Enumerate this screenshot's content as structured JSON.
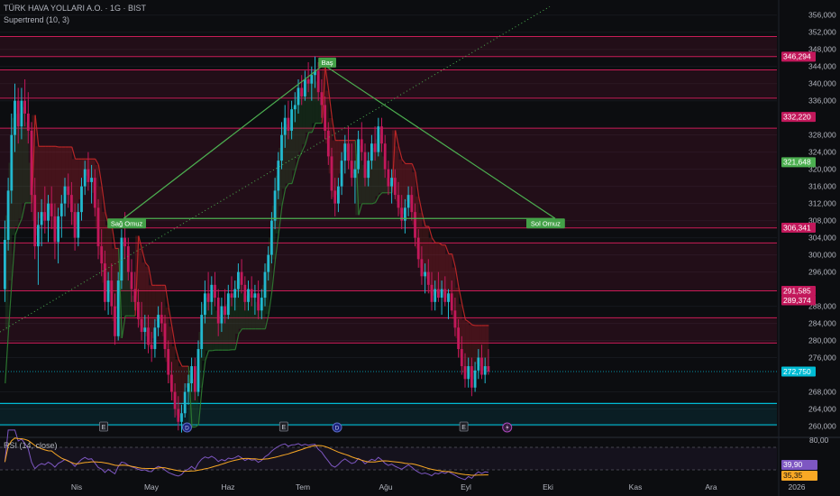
{
  "header": {
    "symbol_title": "TÜRK HAVA YOLLARI A.O. · 1G · BIST",
    "indicator_label": "Supertrend (10, 3)"
  },
  "rsi_panel": {
    "label": "RSI (14, close)",
    "value": "39,90",
    "ma_value": "35,35",
    "upper_tick": "80,00"
  },
  "colors": {
    "background": "#0c0d10",
    "candle_up": "#22b8cf",
    "candle_down": "#c2185b",
    "resistance_line": "#e91e63",
    "support_line": "#00bcd4",
    "trend_line": "#4caf50",
    "supertrend_up": "#2e7d32",
    "supertrend_down": "#c62828",
    "rsi_line": "#7e57c2",
    "rsi_ma": "#f9a825"
  },
  "chart_data": {
    "type": "candlestick",
    "symbol": "TÜRK HAVA YOLLARI A.O.",
    "interval": "1G",
    "exchange": "BIST",
    "x_tick_labels": [
      "Nis",
      "May",
      "Haz",
      "Tem",
      "Ağu",
      "Eyl",
      "Eki",
      "Kas",
      "Ara",
      "2026"
    ],
    "y_tick_labels": [
      "356,000",
      "352,000",
      "348,000",
      "344,000",
      "340,000",
      "336,000",
      "328,000",
      "324,000",
      "320,000",
      "316,000",
      "312,000",
      "308,000",
      "304,000",
      "300,000",
      "296,000",
      "288,000",
      "284,000",
      "280,000",
      "276,000",
      "268,000",
      "264,000",
      "260,000"
    ],
    "y_range": [
      258,
      357
    ],
    "price_badges": [
      {
        "label": "346,294",
        "value": 346.294,
        "color": "#c2185b"
      },
      {
        "label": "332,220",
        "value": 332.22,
        "color": "#c2185b"
      },
      {
        "label": "321,648",
        "value": 321.648,
        "color": "#4caf50"
      },
      {
        "label": "306,341",
        "value": 306.341,
        "color": "#c2185b"
      },
      {
        "label": "291,585",
        "value": 291.585,
        "color": "#c2185b"
      },
      {
        "label": "289,374",
        "value": 289.374,
        "color": "#c2185b"
      },
      {
        "label": "272,750",
        "value": 272.75,
        "color": "#00bcd4"
      }
    ],
    "resistance_levels": [
      351,
      346.3,
      343.2,
      336.6,
      329.6,
      306.3,
      302.8,
      291.6,
      285.3,
      279.4
    ],
    "support_zone": [
      260.3,
      265.3
    ],
    "current_price": 272.75,
    "pattern_labels": [
      {
        "text": "Sağ Omuz",
        "index": 36,
        "price": 308.5
      },
      {
        "text": "Baş",
        "index": 96,
        "price": 344.4
      },
      {
        "text": "Sol Omuz",
        "index": 160,
        "price": 308.5
      }
    ],
    "event_markers": [
      {
        "type": "E",
        "index": 30
      },
      {
        "type": "D",
        "index": 55
      },
      {
        "type": "E",
        "index": 84
      },
      {
        "type": "D",
        "index": 100
      },
      {
        "type": "E",
        "index": 138
      },
      {
        "type": "S",
        "index": 151
      }
    ],
    "candles": [
      [
        292.0,
        308.0,
        289.0,
        303.5
      ],
      [
        303.5,
        318.0,
        301.0,
        315.0
      ],
      [
        315.0,
        333.0,
        312.0,
        328.0
      ],
      [
        328.0,
        340.0,
        324.0,
        336.0
      ],
      [
        336.0,
        339.0,
        326.0,
        330.0
      ],
      [
        330.0,
        339.0,
        327.0,
        336.0
      ],
      [
        336.0,
        341.0,
        330.0,
        333.0
      ],
      [
        333.0,
        338.0,
        326.0,
        329.0
      ],
      [
        329.0,
        331.0,
        310.0,
        314.0
      ],
      [
        314.0,
        318.0,
        299.0,
        302.0
      ],
      [
        302.0,
        310.0,
        293.0,
        307.0
      ],
      [
        307.0,
        313.0,
        302.0,
        310.0
      ],
      [
        310.0,
        316.0,
        305.0,
        308.0
      ],
      [
        308.0,
        314.0,
        303.0,
        312.0
      ],
      [
        312.0,
        316.0,
        306.0,
        309.0
      ],
      [
        309.0,
        312.0,
        299.0,
        303.0
      ],
      [
        303.0,
        311.0,
        298.0,
        309.0
      ],
      [
        309.0,
        314.0,
        304.0,
        312.0
      ],
      [
        312.0,
        318.0,
        309.0,
        316.0
      ],
      [
        316.0,
        319.0,
        311.0,
        314.0
      ],
      [
        314.0,
        317.0,
        307.0,
        310.0
      ],
      [
        310.0,
        312.0,
        301.0,
        304.0
      ],
      [
        304.0,
        312.0,
        302.0,
        310.0
      ],
      [
        310.0,
        318.0,
        308.0,
        316.0
      ],
      [
        316.0,
        322.0,
        314.0,
        320.0
      ],
      [
        320.0,
        324.0,
        315.0,
        317.0
      ],
      [
        317.0,
        321.0,
        312.0,
        318.0
      ],
      [
        318.0,
        320.0,
        309.0,
        311.0
      ],
      [
        311.0,
        313.0,
        299.0,
        302.0
      ],
      [
        302.0,
        306.0,
        295.0,
        298.0
      ],
      [
        298.0,
        301.0,
        287.0,
        289.0
      ],
      [
        289.0,
        296.0,
        286.0,
        294.0
      ],
      [
        294.0,
        298.0,
        286.0,
        288.0
      ],
      [
        288.0,
        291.0,
        279.0,
        281.0
      ],
      [
        281.0,
        296.0,
        280.0,
        294.0
      ],
      [
        294.0,
        306.0,
        292.0,
        304.0
      ],
      [
        304.0,
        310.0,
        299.0,
        302.0
      ],
      [
        302.0,
        304.0,
        294.0,
        296.0
      ],
      [
        296.0,
        299.0,
        289.0,
        292.0
      ],
      [
        292.0,
        296.0,
        287.0,
        289.0
      ],
      [
        289.0,
        292.0,
        283.0,
        285.0
      ],
      [
        285.0,
        289.0,
        280.0,
        282.0
      ],
      [
        282.0,
        286.0,
        278.0,
        283.0
      ],
      [
        283.0,
        286.0,
        277.0,
        279.0
      ],
      [
        279.0,
        282.0,
        275.0,
        278.0
      ],
      [
        278.0,
        285.0,
        276.0,
        283.0
      ],
      [
        283.0,
        288.0,
        281.0,
        286.0
      ],
      [
        286.0,
        289.0,
        282.0,
        284.0
      ],
      [
        284.0,
        286.0,
        276.0,
        278.0
      ],
      [
        278.0,
        280.0,
        270.0,
        272.0
      ],
      [
        272.0,
        275.0,
        266.0,
        268.0
      ],
      [
        268.0,
        270.0,
        262.0,
        264.0
      ],
      [
        264.0,
        267.0,
        259.0,
        261.0
      ],
      [
        261.0,
        265.0,
        258.5,
        263.0
      ],
      [
        263.0,
        270.0,
        262.0,
        268.0
      ],
      [
        268.0,
        272.0,
        265.0,
        270.0
      ],
      [
        270.0,
        276.0,
        268.0,
        274.0
      ],
      [
        274.0,
        276.0,
        266.0,
        268.0
      ],
      [
        268.0,
        280.0,
        267.0,
        278.0
      ],
      [
        278.0,
        289.0,
        276.0,
        286.0
      ],
      [
        286.0,
        294.0,
        284.0,
        291.0
      ],
      [
        291.0,
        296.0,
        287.0,
        289.0
      ],
      [
        289.0,
        295.0,
        286.0,
        293.0
      ],
      [
        293.0,
        296.0,
        288.0,
        290.0
      ],
      [
        290.0,
        292.0,
        281.0,
        284.0
      ],
      [
        284.0,
        290.0,
        282.0,
        288.0
      ],
      [
        288.0,
        292.0,
        284.0,
        286.0
      ],
      [
        286.0,
        293.0,
        285.0,
        291.0
      ],
      [
        291.0,
        295.0,
        288.0,
        290.0
      ],
      [
        290.0,
        294.0,
        287.0,
        292.0
      ],
      [
        292.0,
        298.0,
        290.0,
        296.0
      ],
      [
        296.0,
        299.0,
        291.0,
        293.0
      ],
      [
        293.0,
        295.0,
        287.0,
        289.0
      ],
      [
        289.0,
        294.0,
        287.0,
        292.0
      ],
      [
        292.0,
        295.0,
        288.0,
        290.0
      ],
      [
        290.0,
        293.0,
        286.0,
        291.0
      ],
      [
        291.0,
        294.0,
        285.0,
        287.0
      ],
      [
        287.0,
        292.0,
        285.0,
        290.0
      ],
      [
        290.0,
        298.0,
        288.0,
        296.0
      ],
      [
        296.0,
        302.0,
        294.0,
        300.0
      ],
      [
        300.0,
        310.0,
        298.0,
        308.0
      ],
      [
        308.0,
        318.0,
        306.0,
        315.0
      ],
      [
        315.0,
        324.0,
        313.0,
        322.0
      ],
      [
        322.0,
        331.0,
        320.0,
        328.0
      ],
      [
        328.0,
        335.0,
        325.0,
        332.0
      ],
      [
        332.0,
        336.0,
        327.0,
        329.0
      ],
      [
        329.0,
        336.0,
        327.0,
        334.0
      ],
      [
        334.0,
        338.0,
        331.0,
        335.0
      ],
      [
        335.0,
        341.0,
        333.0,
        339.0
      ],
      [
        339.0,
        342.0,
        335.0,
        337.0
      ],
      [
        337.0,
        343.0,
        336.0,
        341.0
      ],
      [
        341.0,
        345.0,
        338.0,
        340.0
      ],
      [
        340.0,
        344.0,
        336.0,
        342.0
      ],
      [
        342.0,
        346.3,
        339.0,
        343.0
      ],
      [
        343.0,
        345.0,
        336.0,
        338.0
      ],
      [
        338.0,
        341.0,
        332.0,
        335.0
      ],
      [
        335.0,
        337.0,
        327.0,
        329.0
      ],
      [
        329.0,
        331.0,
        321.0,
        323.0
      ],
      [
        323.0,
        325.0,
        313.0,
        315.0
      ],
      [
        315.0,
        318.0,
        309.0,
        312.0
      ],
      [
        312.0,
        318.0,
        310.0,
        316.0
      ],
      [
        316.0,
        324.0,
        314.0,
        322.0
      ],
      [
        322.0,
        328.0,
        319.0,
        326.0
      ],
      [
        326.0,
        330.0,
        320.0,
        322.0
      ],
      [
        322.0,
        326.0,
        316.0,
        318.0
      ],
      [
        318.0,
        322.0,
        312.0,
        320.0
      ],
      [
        320.0,
        329.0,
        319.0,
        327.0
      ],
      [
        327.0,
        331.0,
        322.0,
        324.0
      ],
      [
        324.0,
        326.0,
        316.0,
        318.0
      ],
      [
        318.0,
        324.0,
        316.0,
        322.0
      ],
      [
        322.0,
        328.0,
        320.0,
        326.0
      ],
      [
        326.0,
        330.0,
        322.0,
        324.0
      ],
      [
        324.0,
        332.0,
        323.0,
        330.0
      ],
      [
        330.0,
        332.0,
        324.0,
        326.0
      ],
      [
        326.0,
        328.0,
        318.0,
        320.0
      ],
      [
        320.0,
        322.0,
        314.0,
        316.0
      ],
      [
        316.0,
        320.0,
        312.0,
        318.0
      ],
      [
        318.0,
        320.0,
        313.0,
        314.0
      ],
      [
        314.0,
        317.0,
        309.0,
        311.0
      ],
      [
        311.0,
        314.0,
        306.0,
        308.0
      ],
      [
        308.0,
        313.0,
        305.0,
        311.0
      ],
      [
        311.0,
        316.0,
        309.0,
        314.0
      ],
      [
        314.0,
        316.0,
        308.0,
        310.0
      ],
      [
        310.0,
        312.0,
        302.0,
        304.0
      ],
      [
        304.0,
        306.0,
        297.0,
        299.0
      ],
      [
        299.0,
        302.0,
        293.0,
        295.0
      ],
      [
        295.0,
        298.0,
        291.0,
        296.0
      ],
      [
        296.0,
        299.0,
        291.0,
        293.0
      ],
      [
        293.0,
        296.0,
        287.0,
        289.0
      ],
      [
        289.0,
        294.0,
        287.0,
        292.0
      ],
      [
        292.0,
        296.0,
        289.0,
        290.0
      ],
      [
        290.0,
        294.0,
        286.0,
        292.0
      ],
      [
        292.0,
        295.0,
        288.0,
        289.0
      ],
      [
        289.0,
        292.0,
        285.0,
        291.0
      ],
      [
        291.0,
        294.0,
        286.0,
        287.0
      ],
      [
        287.0,
        290.0,
        281.0,
        283.0
      ],
      [
        283.0,
        285.0,
        276.0,
        278.0
      ],
      [
        278.0,
        281.0,
        272.0,
        274.0
      ],
      [
        274.0,
        277.0,
        269.0,
        271.0
      ],
      [
        271.0,
        276.0,
        269.0,
        274.0
      ],
      [
        274.0,
        276.0,
        267.0,
        269.0
      ],
      [
        269.0,
        275.0,
        268.0,
        273.0
      ],
      [
        273.0,
        278.0,
        271.0,
        276.0
      ],
      [
        276.0,
        279.0,
        271.0,
        272.0
      ],
      [
        272.0,
        276.0,
        270.0,
        274.0
      ],
      [
        274.0,
        278.0,
        272.0,
        272.75
      ]
    ]
  }
}
